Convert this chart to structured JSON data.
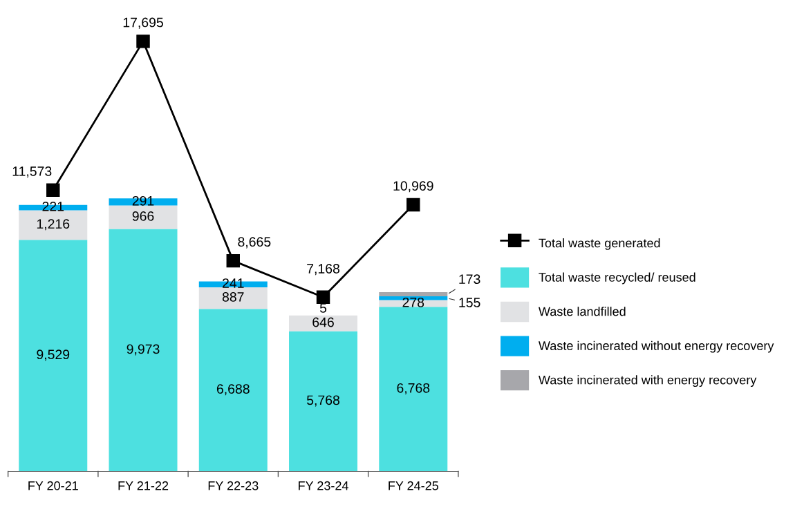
{
  "chart_data": {
    "type": "bar",
    "stacked": true,
    "data_labels": true,
    "legend": "right",
    "grid": false,
    "categories": [
      "FY 20-21",
      "FY 21-22",
      "FY 22-23",
      "FY 23-24",
      "FY 24-25"
    ],
    "series": [
      {
        "name": "Total waste recycled/ reused",
        "color": "#4de0e0",
        "values": [
          9529,
          9973,
          6688,
          5768,
          6768
        ],
        "value_labels": [
          "9,529",
          "9,973",
          "6,688",
          "5,768",
          "6,768"
        ]
      },
      {
        "name": "Waste landfilled",
        "color": "#e1e2e4",
        "values": [
          1216,
          966,
          887,
          646,
          278
        ],
        "value_labels": [
          "1,216",
          "966",
          "887",
          "646",
          "278"
        ]
      },
      {
        "name": "Waste incinerated without energy recovery",
        "color": "#00aeef",
        "values": [
          221,
          291,
          241,
          5,
          155
        ],
        "value_labels": [
          "221",
          "291",
          "241",
          "5",
          "155"
        ]
      },
      {
        "name": "Waste incinerated with energy recovery",
        "color": "#a7a7ab",
        "values": [
          null,
          null,
          null,
          null,
          173
        ],
        "value_labels": [
          null,
          null,
          null,
          null,
          "173"
        ]
      },
      {
        "name": "Total waste generated",
        "type": "line",
        "color": "#000000",
        "marker": "square",
        "line_style": "solid",
        "values": [
          11573,
          17695,
          8665,
          7168,
          10969
        ],
        "value_labels": [
          "11,573",
          "17,695",
          "8,665",
          "7,168",
          "10,969"
        ]
      }
    ]
  }
}
